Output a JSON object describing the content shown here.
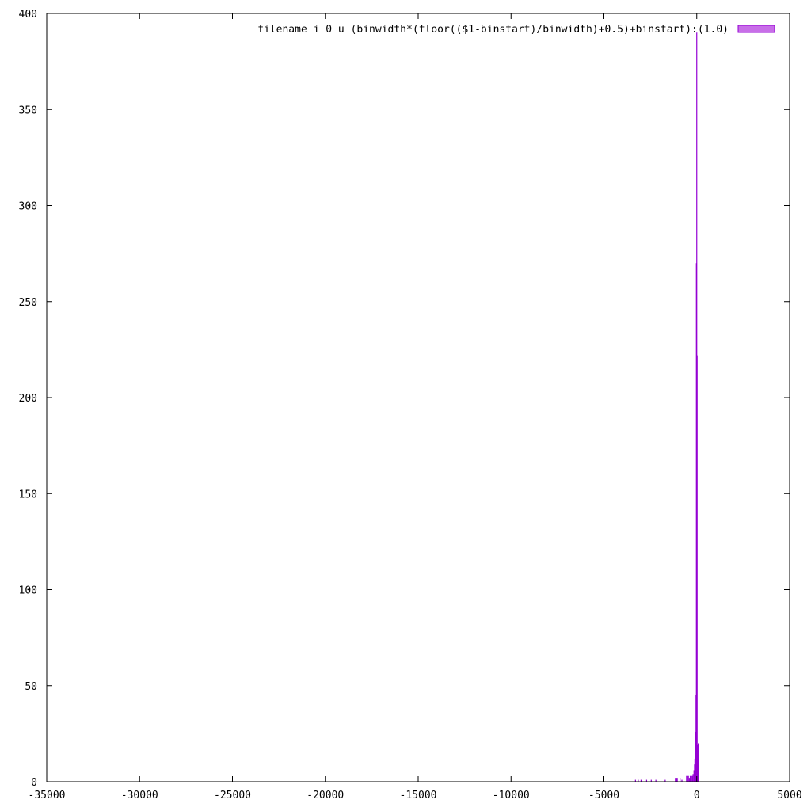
{
  "chart_data": {
    "type": "bar",
    "title": "",
    "xlabel": "",
    "ylabel": "",
    "xlim": [
      -35000,
      5000
    ],
    "ylim": [
      0,
      400
    ],
    "grid": false,
    "legend_position": "top-right",
    "x_ticks": [
      "-35000",
      "-30000",
      "-25000",
      "-20000",
      "-15000",
      "-10000",
      "-5000",
      "0",
      "5000"
    ],
    "y_ticks": [
      "0",
      "50",
      "100",
      "150",
      "200",
      "250",
      "300",
      "350",
      "400"
    ],
    "bin_width": 10,
    "series": [
      {
        "name": "filename i 0 u (binwidth*(floor(($1-binstart)/binwidth)+0.5)+binstart):(1.0)",
        "color": "#9400d3",
        "fill_color": "#c86ee8",
        "points": [
          {
            "x": -3300,
            "y": 1
          },
          {
            "x": -3150,
            "y": 1
          },
          {
            "x": -3000,
            "y": 1
          },
          {
            "x": -2700,
            "y": 1
          },
          {
            "x": -2450,
            "y": 1
          },
          {
            "x": -2200,
            "y": 1
          },
          {
            "x": -1700,
            "y": 1
          },
          {
            "x": -1150,
            "y": 2
          },
          {
            "x": -1100,
            "y": 2
          },
          {
            "x": -1050,
            "y": 2
          },
          {
            "x": -900,
            "y": 2
          },
          {
            "x": -800,
            "y": 1
          },
          {
            "x": -550,
            "y": 3
          },
          {
            "x": -500,
            "y": 3
          },
          {
            "x": -450,
            "y": 3
          },
          {
            "x": -400,
            "y": 2
          },
          {
            "x": -350,
            "y": 3
          },
          {
            "x": -300,
            "y": 3
          },
          {
            "x": -250,
            "y": 3
          },
          {
            "x": -200,
            "y": 4
          },
          {
            "x": -150,
            "y": 6
          },
          {
            "x": -120,
            "y": 9
          },
          {
            "x": -100,
            "y": 12
          },
          {
            "x": -80,
            "y": 20
          },
          {
            "x": -60,
            "y": 26
          },
          {
            "x": -40,
            "y": 45
          },
          {
            "x": -20,
            "y": 270
          },
          {
            "x": 0,
            "y": 390
          },
          {
            "x": 20,
            "y": 222
          },
          {
            "x": 40,
            "y": 19
          },
          {
            "x": 60,
            "y": 12
          },
          {
            "x": 80,
            "y": 20
          }
        ]
      }
    ]
  }
}
